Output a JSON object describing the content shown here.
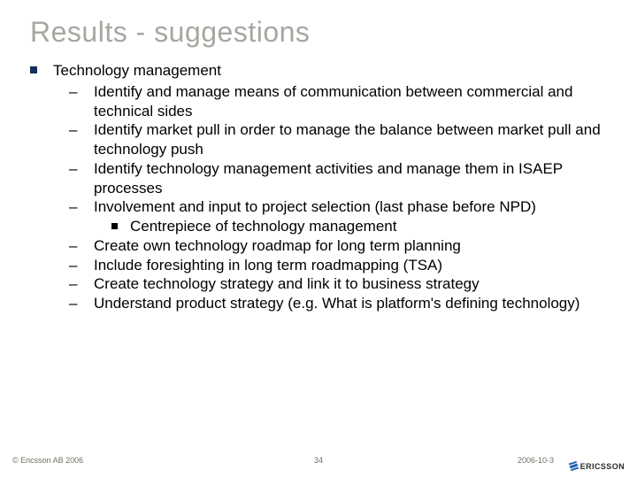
{
  "colors": {
    "title": "#a7a6a0",
    "body_text": "#000000",
    "bullet_square": "#14305c",
    "sub_square": "#000000",
    "footer_text": "#6f6f64",
    "logo_blue": "#1f60b0",
    "logo_text": "#2b2b2b",
    "background": "#ffffff"
  },
  "typography": {
    "title_fontsize": 32,
    "body_fontsize": 17,
    "footer_fontsize": 9,
    "line_height": 1.28,
    "font_family": "Arial"
  },
  "title": "Results - suggestions",
  "main_bullet": "Technology management",
  "sub_bullets": [
    {
      "text": "Identify and manage means of communication between commercial and technical sides",
      "children": []
    },
    {
      "text": "Identify market pull in order to manage the balance between market pull and technology push",
      "children": []
    },
    {
      "text": "Identify technology management activities and manage them in  ISAEP processes",
      "children": []
    },
    {
      "text": "Involvement and input to project selection (last phase before NPD)",
      "children": [
        "Centrepiece of technology management"
      ]
    },
    {
      "text": "Create own technology roadmap for long term planning",
      "children": []
    },
    {
      "text": "Include foresighting in long term roadmapping (TSA)",
      "children": []
    },
    {
      "text": "Create technology strategy and link it to business strategy",
      "children": []
    },
    {
      "text": "Understand product strategy (e.g. What is platform's defining technology)",
      "children": []
    }
  ],
  "footer": {
    "copyright": "© Ericsson AB 2006",
    "page": "34",
    "date": "2006-10-3",
    "logo_text": "ERICSSON"
  }
}
